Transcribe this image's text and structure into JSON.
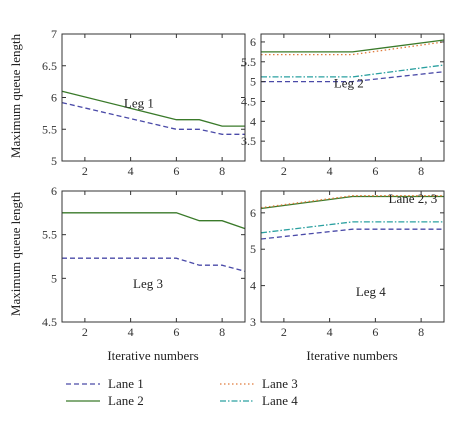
{
  "figure": {
    "ylabel": "Maximum queue length",
    "xlabel": "Iterative numbers"
  },
  "legend": {
    "entries": [
      {
        "name": "Lane 1",
        "color": "#4a4aa8",
        "dash": "dashed"
      },
      {
        "name": "Lane 2",
        "color": "#3a7a2a",
        "dash": "solid"
      },
      {
        "name": "Lane 3",
        "color": "#e07a3a",
        "dash": "dotted"
      },
      {
        "name": "Lane 4",
        "color": "#2aa0a0",
        "dash": "dashdot"
      }
    ]
  },
  "chart_data": [
    {
      "type": "line",
      "annotation": "Leg 1",
      "xlim": [
        1,
        9
      ],
      "ylim": [
        5,
        7
      ],
      "xticks": [
        2,
        4,
        6,
        8
      ],
      "yticks": [
        5,
        5.5,
        6,
        6.5,
        7
      ],
      "ylabel": "Maximum queue length",
      "xlabel": "",
      "series": [
        {
          "name": "Lane 1",
          "x": [
            1,
            6,
            7,
            8,
            9
          ],
          "y": [
            5.92,
            5.5,
            5.5,
            5.42,
            5.42
          ]
        },
        {
          "name": "Lane 2",
          "x": [
            1,
            6,
            7,
            8,
            9
          ],
          "y": [
            6.1,
            5.65,
            5.65,
            5.55,
            5.55
          ]
        }
      ]
    },
    {
      "type": "line",
      "annotation": "Leg 2",
      "xlim": [
        1,
        9
      ],
      "ylim": [
        3,
        6.2
      ],
      "xticks": [
        2,
        4,
        6,
        8
      ],
      "yticks": [
        3.5,
        4,
        4.5,
        5,
        5.5,
        6
      ],
      "ylabel": "",
      "xlabel": "",
      "series": [
        {
          "name": "Lane 1",
          "x": [
            1,
            5,
            9
          ],
          "y": [
            5.0,
            5.0,
            5.25
          ]
        },
        {
          "name": "Lane 2",
          "x": [
            1,
            5,
            9
          ],
          "y": [
            5.75,
            5.75,
            6.05
          ]
        },
        {
          "name": "Lane 3",
          "x": [
            1,
            5,
            9
          ],
          "y": [
            5.68,
            5.68,
            6.0
          ]
        },
        {
          "name": "Lane 4",
          "x": [
            1,
            5,
            9
          ],
          "y": [
            5.12,
            5.12,
            5.42
          ]
        }
      ]
    },
    {
      "type": "line",
      "annotation": "Leg 3",
      "xlim": [
        1,
        9
      ],
      "ylim": [
        4.5,
        6
      ],
      "xticks": [
        2,
        4,
        6,
        8
      ],
      "yticks": [
        4.5,
        5,
        5.5,
        6
      ],
      "ylabel": "Maximum queue length",
      "xlabel": "Iterative numbers",
      "series": [
        {
          "name": "Lane 1",
          "x": [
            1,
            6,
            7,
            8,
            9
          ],
          "y": [
            5.23,
            5.23,
            5.15,
            5.15,
            5.08
          ]
        },
        {
          "name": "Lane 2",
          "x": [
            1,
            6,
            7,
            8,
            9
          ],
          "y": [
            5.75,
            5.75,
            5.66,
            5.66,
            5.57
          ]
        }
      ]
    },
    {
      "type": "line",
      "annotation": "Leg 4",
      "annotation2": "Lane 2, 3",
      "xlim": [
        1,
        9
      ],
      "ylim": [
        3,
        6.6
      ],
      "xticks": [
        2,
        4,
        6,
        8
      ],
      "yticks": [
        3,
        4,
        5,
        6
      ],
      "ylabel": "",
      "xlabel": "Iterative numbers",
      "series": [
        {
          "name": "Lane 1",
          "x": [
            1,
            5,
            9
          ],
          "y": [
            5.28,
            5.55,
            5.55
          ]
        },
        {
          "name": "Lane 2",
          "x": [
            1,
            5,
            9
          ],
          "y": [
            6.12,
            6.45,
            6.45
          ]
        },
        {
          "name": "Lane 3",
          "x": [
            1,
            5,
            9
          ],
          "y": [
            6.14,
            6.47,
            6.47
          ]
        },
        {
          "name": "Lane 4",
          "x": [
            1,
            5,
            9
          ],
          "y": [
            5.45,
            5.75,
            5.75
          ]
        }
      ]
    }
  ]
}
